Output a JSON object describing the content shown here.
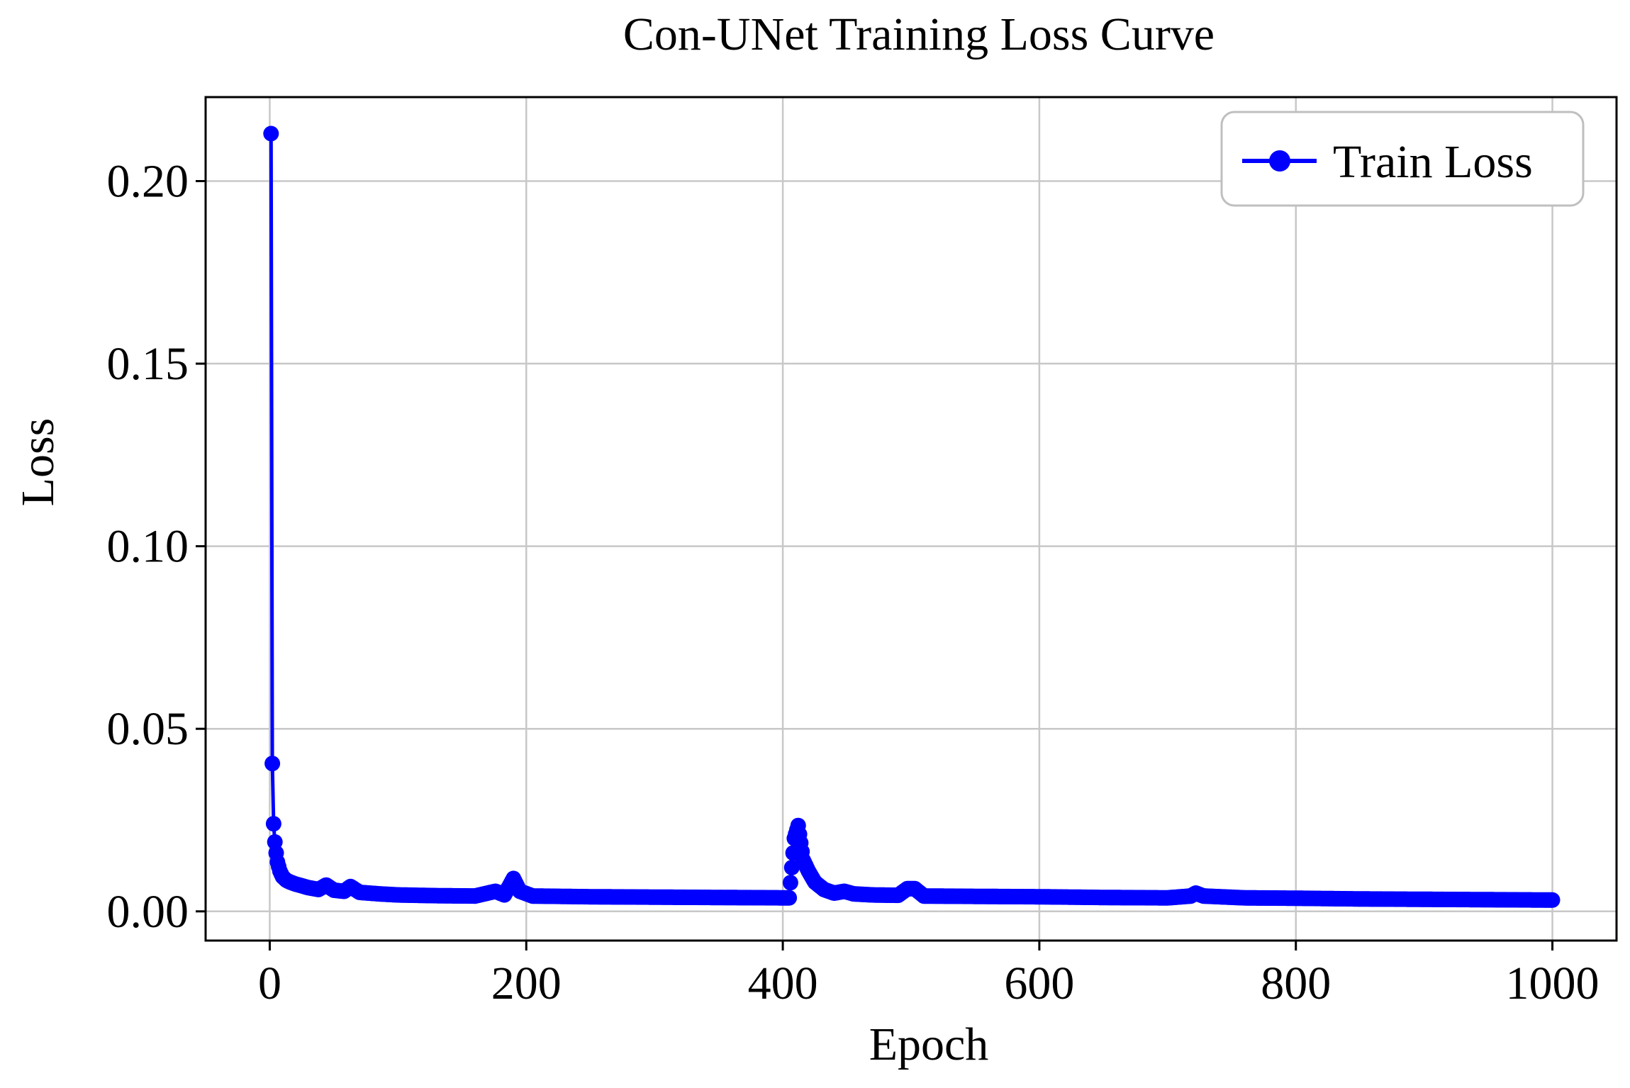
{
  "chart_data": {
    "type": "line",
    "title": "Con-UNet Training Loss Curve",
    "xlabel": "Epoch",
    "ylabel": "Loss",
    "xlim": [
      -50,
      1050
    ],
    "ylim": [
      -0.008,
      0.223
    ],
    "xticks": [
      0,
      200,
      400,
      600,
      800,
      1000
    ],
    "xtick_labels": [
      "0",
      "200",
      "400",
      "600",
      "800",
      "1000"
    ],
    "yticks": [
      0.0,
      0.05,
      0.1,
      0.15,
      0.2
    ],
    "ytick_labels": [
      "0.00",
      "0.05",
      "0.10",
      "0.15",
      "0.20"
    ],
    "grid": true,
    "legend_position": "top-right",
    "line_color": "#0000ff",
    "series": [
      {
        "name": "Train Loss",
        "color": "#0000ff",
        "marker": "circle",
        "anchors": [
          [
            1,
            0.213
          ],
          [
            2,
            0.0405
          ],
          [
            3,
            0.024
          ],
          [
            4,
            0.019
          ],
          [
            5,
            0.016
          ],
          [
            6,
            0.0135
          ],
          [
            8,
            0.011
          ],
          [
            10,
            0.0095
          ],
          [
            13,
            0.0085
          ],
          [
            16,
            0.008
          ],
          [
            20,
            0.0075
          ],
          [
            25,
            0.007
          ],
          [
            30,
            0.0065
          ],
          [
            38,
            0.006
          ],
          [
            44,
            0.0072
          ],
          [
            50,
            0.0058
          ],
          [
            58,
            0.0055
          ],
          [
            63,
            0.0068
          ],
          [
            70,
            0.0052
          ],
          [
            85,
            0.0048
          ],
          [
            100,
            0.0045
          ],
          [
            130,
            0.0043
          ],
          [
            160,
            0.0042
          ],
          [
            176,
            0.0055
          ],
          [
            183,
            0.0045
          ],
          [
            190,
            0.009
          ],
          [
            195,
            0.0055
          ],
          [
            205,
            0.0042
          ],
          [
            250,
            0.004
          ],
          [
            300,
            0.0039
          ],
          [
            350,
            0.0038
          ],
          [
            405,
            0.0037
          ],
          [
            407,
            0.012
          ],
          [
            409,
            0.02
          ],
          [
            412,
            0.0235
          ],
          [
            416,
            0.014
          ],
          [
            420,
            0.011
          ],
          [
            425,
            0.008
          ],
          [
            432,
            0.006
          ],
          [
            440,
            0.005
          ],
          [
            448,
            0.0055
          ],
          [
            455,
            0.0048
          ],
          [
            470,
            0.0045
          ],
          [
            490,
            0.0044
          ],
          [
            497,
            0.0062
          ],
          [
            503,
            0.0062
          ],
          [
            510,
            0.0042
          ],
          [
            550,
            0.0041
          ],
          [
            600,
            0.004
          ],
          [
            650,
            0.0038
          ],
          [
            700,
            0.0037
          ],
          [
            718,
            0.0042
          ],
          [
            722,
            0.005
          ],
          [
            728,
            0.0042
          ],
          [
            760,
            0.0037
          ],
          [
            800,
            0.0036
          ],
          [
            850,
            0.0034
          ],
          [
            900,
            0.0033
          ],
          [
            950,
            0.0032
          ],
          [
            1000,
            0.0031
          ]
        ]
      }
    ]
  }
}
